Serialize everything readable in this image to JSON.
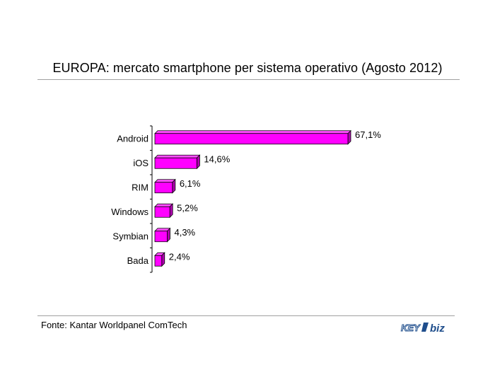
{
  "header": {
    "title": "EUROPA: mercato smartphone per sistema operativo (Agosto 2012)"
  },
  "footer": {
    "source": "Fonte: Kantar Worldpanel ComTech",
    "logo_text": "KEY4biz"
  },
  "colors": {
    "bar_front": "#ff00ff",
    "bar_top": "#ff4dff",
    "bar_side": "#b000b0",
    "bar_outline": "#000000"
  },
  "chart_data": {
    "type": "bar",
    "orientation": "horizontal",
    "categories": [
      "Android",
      "iOS",
      "RIM",
      "Windows",
      "Symbian",
      "Bada"
    ],
    "values": [
      67.1,
      14.6,
      6.1,
      5.2,
      4.3,
      2.4
    ],
    "value_labels": [
      "67,1%",
      "14,6%",
      "6,1%",
      "5,2%",
      "4,3%",
      "2,4%"
    ],
    "unit": "%",
    "title": "EUROPA: mercato smartphone per sistema operativo (Agosto 2012)",
    "xlabel": "",
    "ylabel": "",
    "xlim": [
      0,
      67.1
    ],
    "grid": false,
    "legend": "none",
    "style": "3d"
  }
}
